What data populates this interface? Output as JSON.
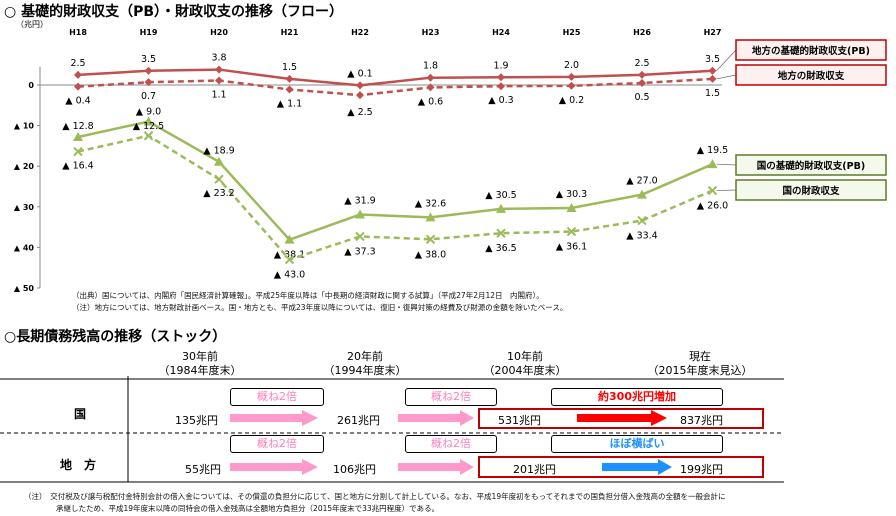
{
  "flow_section": {
    "title": "○ 基礎的財政収支（PB）・財政収支の推移（フロー）",
    "source_note_1": "（出典）国については、内閣府「国民経済計算確報」。平成25年度以降は「中長期の経済財政に関する試算」（平成27年2月12日　内閣府）。",
    "source_note_2": "（注）地方については、地方財政計画ベース。国・地方とも、平成23年度以降については、復旧・復興対策の経費及び財源の金額を除いたベース。"
  },
  "chart_data": {
    "type": "line",
    "unit_label": "（兆円）",
    "categories": [
      "H18",
      "H19",
      "H20",
      "H21",
      "H22",
      "H23",
      "H24",
      "H25",
      "H26",
      "H27"
    ],
    "ylim": [
      -50,
      5
    ],
    "y_ticks": [
      0,
      -10,
      -20,
      -30,
      -40,
      -50
    ],
    "y_tick_labels": [
      "0",
      "▲ 10",
      "▲ 20",
      "▲ 30",
      "▲ 40",
      "▲ 50"
    ],
    "series": [
      {
        "name": "地方の基礎的財政収支(PB)",
        "color": "#c0504d",
        "style": "solid",
        "marker": "diamond",
        "values": [
          2.5,
          3.5,
          3.8,
          1.5,
          -0.1,
          1.8,
          1.9,
          2.0,
          2.5,
          3.5
        ],
        "labels": [
          "2.5",
          "3.5",
          "3.8",
          "1.5",
          "▲ 0.1",
          "1.8",
          "1.9",
          "2.0",
          "2.5",
          "3.5"
        ]
      },
      {
        "name": "地方の財政収支",
        "color": "#c0504d",
        "style": "dashed",
        "marker": "diamond",
        "values": [
          -0.4,
          0.7,
          1.1,
          -1.1,
          -2.5,
          -0.6,
          -0.3,
          -0.2,
          0.5,
          1.5
        ],
        "labels": [
          "▲ 0.4",
          "0.7",
          "1.1",
          "▲ 1.1",
          "▲ 2.5",
          "▲ 0.6",
          "▲ 0.3",
          "▲ 0.2",
          "0.5",
          "1.5"
        ]
      },
      {
        "name": "国の基礎的財政収支(PB)",
        "color": "#9bbb59",
        "style": "solid",
        "marker": "triangle",
        "values": [
          -12.8,
          -9.0,
          -18.9,
          -38.1,
          -31.9,
          -32.6,
          -30.5,
          -30.3,
          -27.0,
          -19.5
        ],
        "labels": [
          "▲ 12.8",
          "▲ 9.0",
          "▲ 18.9",
          "▲ 38.1",
          "▲ 31.9",
          "▲ 32.6",
          "▲ 30.5",
          "▲ 30.3",
          "▲ 27.0",
          "▲ 19.5"
        ]
      },
      {
        "name": "国の財政収支",
        "color": "#9bbb59",
        "style": "dashed",
        "marker": "x",
        "values": [
          -16.4,
          -12.5,
          -23.2,
          -43.0,
          -37.3,
          -38.0,
          -36.5,
          -36.1,
          -33.4,
          -26.0
        ],
        "labels": [
          "▲ 16.4",
          "▲ 12.5",
          "▲ 23.2",
          "▲ 43.0",
          "▲ 37.3",
          "▲ 38.0",
          "▲ 36.5",
          "▲ 36.1",
          "▲ 33.4",
          "▲ 26.0"
        ]
      }
    ]
  },
  "stock_section": {
    "title": "○長期債務残高の推移（ストック）",
    "columns": [
      {
        "line1": "30年前",
        "line2": "（1984年度末）"
      },
      {
        "line1": "20年前",
        "line2": "（1994年度末）"
      },
      {
        "line1": "10年前",
        "line2": "（2004年度末）"
      },
      {
        "line1": "現在",
        "line2": "（2015年度末見込）"
      }
    ],
    "national": {
      "label": "国",
      "values": [
        "135兆円",
        "261兆円",
        "531兆円",
        "837兆円"
      ],
      "change_1": "概ね2倍",
      "change_2": "概ね2倍",
      "change_3": "約300兆円増加"
    },
    "local": {
      "label": "地　方",
      "values": [
        "55兆円",
        "106兆円",
        "201兆円",
        "199兆円"
      ],
      "change_1": "概ね2倍",
      "change_2": "概ね2倍",
      "change_3": "ほぼ横ばい"
    },
    "note_1": "（注）　交付税及び譲与税配付金特別会計の借入金については、その償還の負担分に応じて、国と地方に分割して計上している。なお、平成19年度初をもってそれまでの国負担分借入金残高の全額を一般会計に",
    "note_2": "承継したため、平成19年度末以降の同特会の借入金残高は全額地方負担分（2015年度末で33兆円程度）である。",
    "colors": {
      "pink": "#ff80c0",
      "red": "#ff0000",
      "blue": "#1e90ff",
      "box_red": "#c00000"
    }
  }
}
